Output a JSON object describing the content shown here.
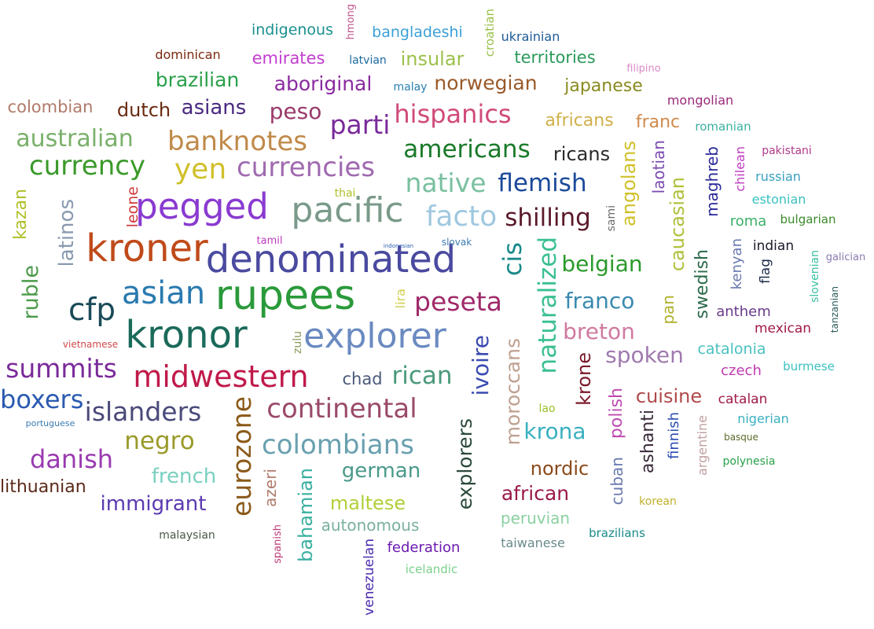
{
  "words": [
    {
      "text": "indigenous",
      "color": "#1a8f8f"
    },
    {
      "text": "hmong",
      "color": "#c0588f"
    },
    {
      "text": "bangladeshi",
      "color": "#3aa0d8"
    },
    {
      "text": "croatian",
      "color": "#9cc04a"
    },
    {
      "text": "ukrainian",
      "color": "#1e5a96"
    },
    {
      "text": "dominican",
      "color": "#7a2a10"
    },
    {
      "text": "emirates",
      "color": "#c23ed0"
    },
    {
      "text": "latvian",
      "color": "#1a6aa0"
    },
    {
      "text": "insular",
      "color": "#9cc04a"
    },
    {
      "text": "territories",
      "color": "#2a9a5a"
    },
    {
      "text": "filipino",
      "color": "#d98ac8"
    },
    {
      "text": "brazilian",
      "color": "#2aa04a"
    },
    {
      "text": "aboriginal",
      "color": "#8a2aa0"
    },
    {
      "text": "malay",
      "color": "#2a80b0"
    },
    {
      "text": "norwegian",
      "color": "#9a5a2a"
    },
    {
      "text": "japanese",
      "color": "#8a8a20"
    },
    {
      "text": "colombian",
      "color": "#b07a6a"
    },
    {
      "text": "dutch",
      "color": "#6a2a10"
    },
    {
      "text": "asians",
      "color": "#4a2a80"
    },
    {
      "text": "peso",
      "color": "#9a3a6a"
    },
    {
      "text": "parti",
      "color": "#7a2a9a"
    },
    {
      "text": "hispanics",
      "color": "#d04a7a"
    },
    {
      "text": "africans",
      "color": "#d0b04a"
    },
    {
      "text": "franc",
      "color": "#d08a4a"
    },
    {
      "text": "mongolian",
      "color": "#9a2a7a"
    },
    {
      "text": "romanian",
      "color": "#3ab0a0"
    },
    {
      "text": "australian",
      "color": "#7ab06a"
    },
    {
      "text": "banknotes",
      "color": "#c08a4a"
    },
    {
      "text": "americans",
      "color": "#1a7a2a"
    },
    {
      "text": "ricans",
      "color": "#2a2a2a"
    },
    {
      "text": "pakistani",
      "color": "#b03a8a"
    },
    {
      "text": "currency",
      "color": "#3a9a2a"
    },
    {
      "text": "yen",
      "color": "#d0c02a"
    },
    {
      "text": "currencies",
      "color": "#a06ab0"
    },
    {
      "text": "native",
      "color": "#7ac0a0"
    },
    {
      "text": "flemish",
      "color": "#1a4a9a"
    },
    {
      "text": "angolans",
      "color": "#d0c02a"
    },
    {
      "text": "laotian",
      "color": "#7a4ab0"
    },
    {
      "text": "maghreb",
      "color": "#2a2a9a"
    },
    {
      "text": "chilean",
      "color": "#c03ac0"
    },
    {
      "text": "russian",
      "color": "#3aa0c0"
    },
    {
      "text": "kazan",
      "color": "#b0c02a"
    },
    {
      "text": "latinos",
      "color": "#8a9ab0"
    },
    {
      "text": "leone",
      "color": "#d03a3a"
    },
    {
      "text": "pegged",
      "color": "#8a3ad0"
    },
    {
      "text": "thai",
      "color": "#b0c02a"
    },
    {
      "text": "pacific",
      "color": "#7a9a8a"
    },
    {
      "text": "facto",
      "color": "#a0c8e0"
    },
    {
      "text": "shilling",
      "color": "#5a1a2a"
    },
    {
      "text": "sami",
      "color": "#6a6a6a"
    },
    {
      "text": "caucasian",
      "color": "#b0c03a"
    },
    {
      "text": "estonian",
      "color": "#3ac0c0"
    },
    {
      "text": "roma",
      "color": "#3ab06a"
    },
    {
      "text": "bulgarian",
      "color": "#3a8a2a"
    },
    {
      "text": "kroner",
      "color": "#c04a1a"
    },
    {
      "text": "tamil",
      "color": "#c03ac0"
    },
    {
      "text": "denominated",
      "color": "#4a4aa0"
    },
    {
      "text": "indonesian",
      "color": "#2a5ab0"
    },
    {
      "text": "slovak",
      "color": "#3a7ab0"
    },
    {
      "text": "cis",
      "color": "#1a8a8a"
    },
    {
      "text": "naturalized",
      "color": "#3ac090"
    },
    {
      "text": "belgian",
      "color": "#2a9a2a"
    },
    {
      "text": "swedish",
      "color": "#2a6a4a"
    },
    {
      "text": "kenyan",
      "color": "#6a7ab0"
    },
    {
      "text": "indian",
      "color": "#1a1a2a"
    },
    {
      "text": "flag",
      "color": "#1a2a4a"
    },
    {
      "text": "slovenian",
      "color": "#3ac0a0"
    },
    {
      "text": "galician",
      "color": "#8a7ab0"
    },
    {
      "text": "ruble",
      "color": "#4a9a4a"
    },
    {
      "text": "cfp",
      "color": "#1a4a5a"
    },
    {
      "text": "asian",
      "color": "#2a7ab0"
    },
    {
      "text": "rupees",
      "color": "#2a9a3a"
    },
    {
      "text": "lira",
      "color": "#d0d04a"
    },
    {
      "text": "peseta",
      "color": "#a02a6a"
    },
    {
      "text": "franco",
      "color": "#3a8ab0"
    },
    {
      "text": "pan",
      "color": "#b0b02a"
    },
    {
      "text": "anthem",
      "color": "#6a3a8a"
    },
    {
      "text": "tanzanian",
      "color": "#2a5a5a"
    },
    {
      "text": "kronor",
      "color": "#1a6a5a"
    },
    {
      "text": "vietnamese",
      "color": "#d04a4a"
    },
    {
      "text": "zulu",
      "color": "#8a9a5a"
    },
    {
      "text": "explorer",
      "color": "#6a8ac0"
    },
    {
      "text": "breton",
      "color": "#d07aa0"
    },
    {
      "text": "mexican",
      "color": "#a01a4a"
    },
    {
      "text": "ivoire",
      "color": "#3a4ab0"
    },
    {
      "text": "moroccans",
      "color": "#c0a090"
    },
    {
      "text": "krone",
      "color": "#7a1a2a"
    },
    {
      "text": "spoken",
      "color": "#a07ab0"
    },
    {
      "text": "catalonia",
      "color": "#4ac0c0"
    },
    {
      "text": "summits",
      "color": "#7a2a9a"
    },
    {
      "text": "midwestern",
      "color": "#c01a4a"
    },
    {
      "text": "chad",
      "color": "#4a5a7a"
    },
    {
      "text": "rican",
      "color": "#4a9a7a"
    },
    {
      "text": "czech",
      "color": "#c03ab0"
    },
    {
      "text": "burmese",
      "color": "#3ac0c0"
    },
    {
      "text": "boxers",
      "color": "#2a5ab0"
    },
    {
      "text": "cuisine",
      "color": "#b04a4a"
    },
    {
      "text": "catalan",
      "color": "#a01a4a"
    },
    {
      "text": "islanders",
      "color": "#4a4a7a"
    },
    {
      "text": "continental",
      "color": "#9a4a6a"
    },
    {
      "text": "eurozone",
      "color": "#8a5a1a"
    },
    {
      "text": "lao",
      "color": "#9ac02a"
    },
    {
      "text": "polish",
      "color": "#c04ab0"
    },
    {
      "text": "nigerian",
      "color": "#3ab0c0"
    },
    {
      "text": "portuguese",
      "color": "#3a7ab0"
    },
    {
      "text": "negro",
      "color": "#9a9a2a"
    },
    {
      "text": "colombians",
      "color": "#6aa0b0"
    },
    {
      "text": "krona",
      "color": "#3ab0c0"
    },
    {
      "text": "ashanti",
      "color": "#3a2a3a"
    },
    {
      "text": "finnish",
      "color": "#2a4ab0"
    },
    {
      "text": "argentine",
      "color": "#c0a0a0"
    },
    {
      "text": "basque",
      "color": "#5a6a2a"
    },
    {
      "text": "danish",
      "color": "#9a3ab0"
    },
    {
      "text": "explorers",
      "color": "#2a4a3a"
    },
    {
      "text": "polynesia",
      "color": "#2aa04a"
    },
    {
      "text": "french",
      "color": "#7ad0c0"
    },
    {
      "text": "german",
      "color": "#4a9a8a"
    },
    {
      "text": "nordic",
      "color": "#8a4a1a"
    },
    {
      "text": "cuban",
      "color": "#6a7ab0"
    },
    {
      "text": "lithuanian",
      "color": "#5a2a1a"
    },
    {
      "text": "azeri",
      "color": "#b07a6a"
    },
    {
      "text": "bahamian",
      "color": "#3ab0a0"
    },
    {
      "text": "african",
      "color": "#9a1a4a"
    },
    {
      "text": "korean",
      "color": "#c0b02a"
    },
    {
      "text": "immigrant",
      "color": "#5a3ab0"
    },
    {
      "text": "maltese",
      "color": "#b0d03a"
    },
    {
      "text": "peruvian",
      "color": "#8ad0a0"
    },
    {
      "text": "autonomous",
      "color": "#7ab0a0"
    },
    {
      "text": "brazilians",
      "color": "#1a8a8a"
    },
    {
      "text": "malaysian",
      "color": "#4a5a4a"
    },
    {
      "text": "spanish",
      "color": "#c03a7a"
    },
    {
      "text": "venezuelan",
      "color": "#4a2ab0"
    },
    {
      "text": "federation",
      "color": "#6a1ab0"
    },
    {
      "text": "taiwanese",
      "color": "#6a8a8a"
    },
    {
      "text": "icelandic",
      "color": "#7ad08a"
    }
  ]
}
